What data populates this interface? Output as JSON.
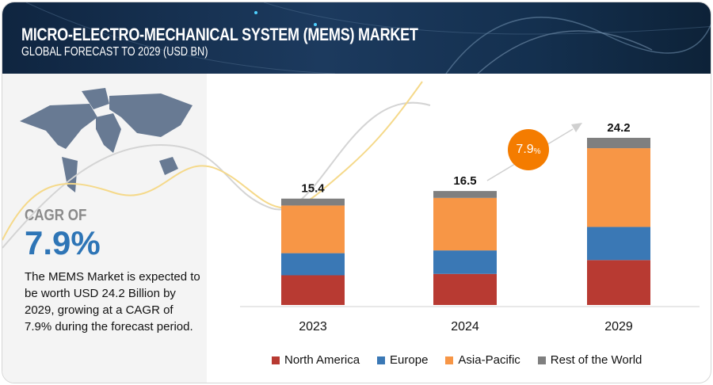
{
  "header": {
    "title": "MICRO-ELECTRO-MECHANICAL SYSTEM (MEMS) MARKET",
    "subtitle": "GLOBAL FORECAST TO 2029 (USD BN)"
  },
  "summary": {
    "cagr_label": "CAGR OF",
    "cagr_value": "7.9%",
    "description": "The MEMS Market is expected to be worth USD 24.2 Billion by 2029, growing at a CAGR of 7.9% during the forecast period."
  },
  "badge": {
    "value": "7.9",
    "unit": "%"
  },
  "chart_data": {
    "type": "bar",
    "stacked": true,
    "title": "MICRO-ELECTRO-MECHANICAL SYSTEM (MEMS) MARKET",
    "subtitle": "GLOBAL FORECAST TO 2029 (USD BN)",
    "categories": [
      "2023",
      "2024",
      "2029"
    ],
    "totals": [
      "15.4",
      "16.5",
      "24.2"
    ],
    "series": [
      {
        "name": "North America",
        "color": "#b83a32",
        "values": [
          4.3,
          4.5,
          6.5
        ]
      },
      {
        "name": "Europe",
        "color": "#3a78b5",
        "values": [
          3.2,
          3.4,
          4.8
        ]
      },
      {
        "name": "Asia-Pacific",
        "color": "#f79646",
        "values": [
          6.9,
          7.6,
          11.4
        ]
      },
      {
        "name": "Rest of the World",
        "color": "#7f7f7f",
        "values": [
          1.0,
          1.0,
          1.5
        ]
      }
    ],
    "legend": "bottom",
    "grid": false,
    "ylim": [
      0,
      26
    ]
  }
}
